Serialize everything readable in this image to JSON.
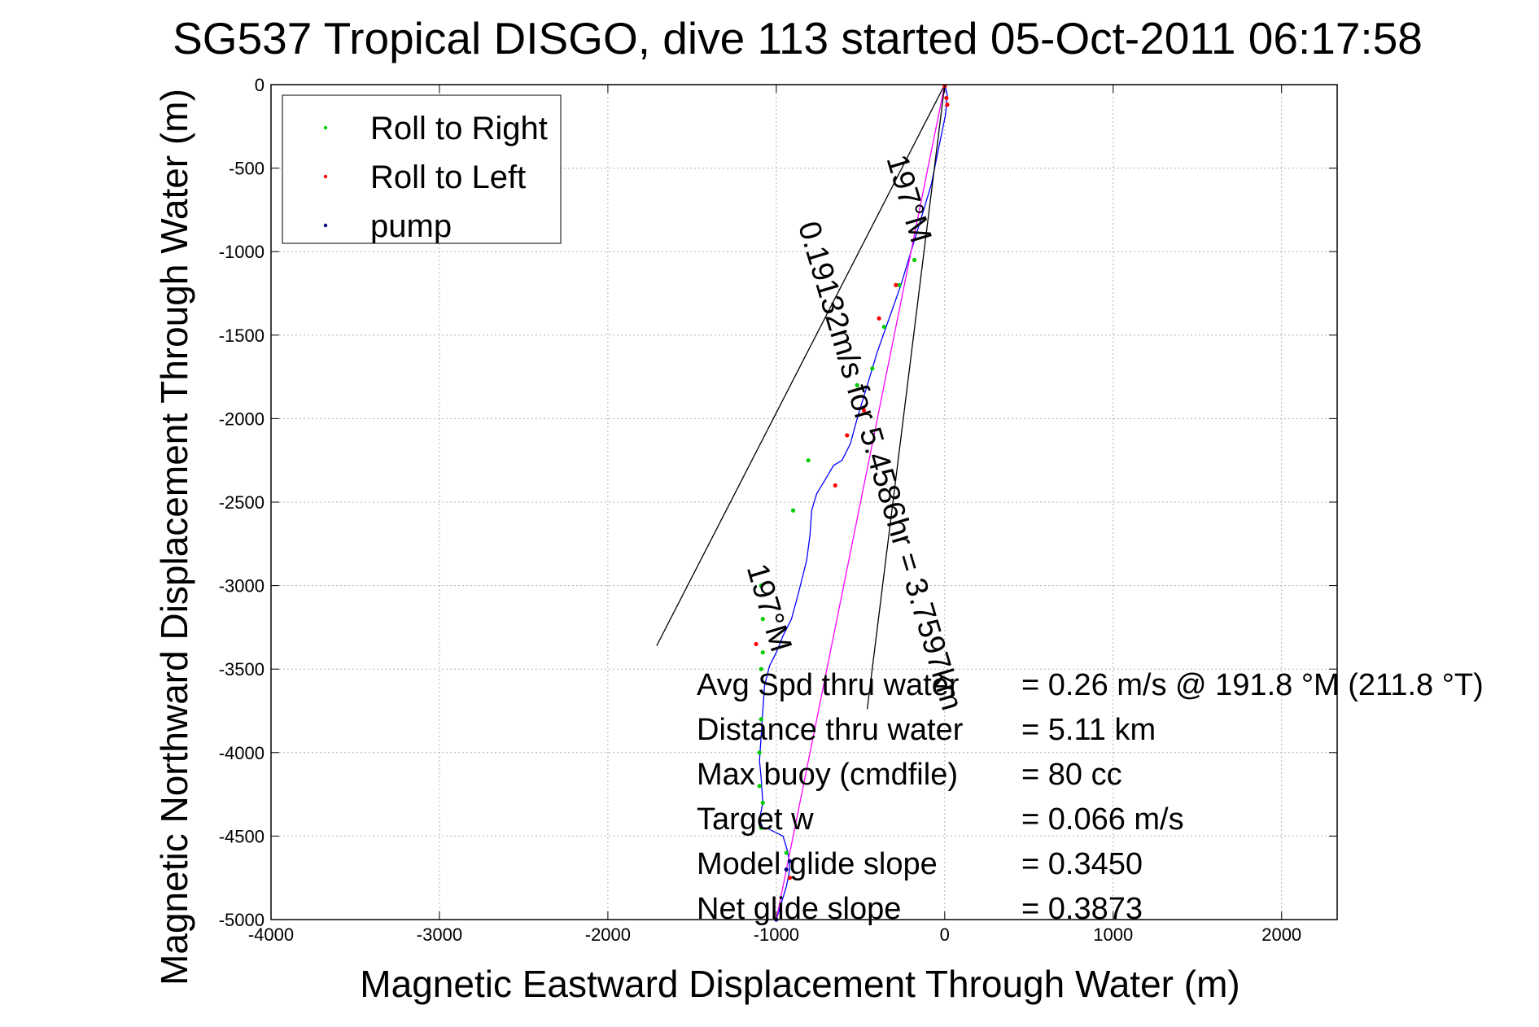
{
  "chart_data": {
    "type": "line",
    "title": "SG537 Tropical DISGO, dive 113 started 05-Oct-2011 06:17:58",
    "xlabel": "Magnetic Eastward Displacement Through Water (m)",
    "ylabel": "Magnetic Northward Displacement Through Water (m)",
    "xlim": [
      -4000,
      2330
    ],
    "ylim": [
      -5000,
      0
    ],
    "xticks": [
      -4000,
      -3000,
      -2000,
      -1000,
      0,
      1000,
      2000
    ],
    "yticks": [
      0,
      -500,
      -1000,
      -1500,
      -2000,
      -2500,
      -3000,
      -3500,
      -4000,
      -4500,
      -5000
    ],
    "grid": true,
    "legend_position": "top-left",
    "legend": [
      {
        "label": "Roll to Right",
        "color": "#00cc00"
      },
      {
        "label": "Roll to Left",
        "color": "#ff0000"
      },
      {
        "label": "pump",
        "color": "#000080"
      }
    ],
    "series": [
      {
        "color": "#0000ff",
        "x": [
          0,
          15,
          10,
          5,
          -40,
          -80,
          -140,
          -200,
          -260,
          -330,
          -400,
          -460,
          -520,
          -560,
          -610,
          -660,
          -700,
          -760,
          -790,
          -800,
          -820,
          -870,
          -910,
          -960,
          -1000,
          -1040,
          -1070,
          -1080,
          -1090,
          -1100,
          -1090,
          -1080,
          -1100,
          -1080,
          -1070,
          -1060,
          -960,
          -930,
          -920,
          -940,
          -970,
          -1000
        ],
        "y": [
          0,
          -60,
          -120,
          -180,
          -400,
          -600,
          -800,
          -1000,
          -1200,
          -1400,
          -1600,
          -1800,
          -2000,
          -2150,
          -2250,
          -2280,
          -2350,
          -2450,
          -2550,
          -2700,
          -2850,
          -3050,
          -3200,
          -3300,
          -3400,
          -3480,
          -3600,
          -3750,
          -3900,
          -4050,
          -4150,
          -4300,
          -4400,
          -4450,
          -4450,
          -4450,
          -4500,
          -4600,
          -4700,
          -4800,
          -4900,
          -5000
        ]
      },
      {
        "color": "#ff00ff",
        "x": [
          0,
          -1000
        ],
        "y": [
          0,
          -5000
        ]
      },
      {
        "color": "#000000",
        "x": [
          0,
          -1710
        ],
        "y": [
          0,
          -3360
        ]
      },
      {
        "color": "#000000",
        "x": [
          0,
          -460
        ],
        "y": [
          0,
          -3740
        ]
      }
    ],
    "markers": {
      "roll_right": {
        "color": "#00cc00",
        "points": [
          [
            -180,
            -1050
          ],
          [
            -270,
            -1200
          ],
          [
            -360,
            -1450
          ],
          [
            -430,
            -1700
          ],
          [
            -520,
            -1800
          ],
          [
            -810,
            -2250
          ],
          [
            -900,
            -2550
          ],
          [
            -1090,
            -3000
          ],
          [
            -1080,
            -3200
          ],
          [
            -1080,
            -3400
          ],
          [
            -1090,
            -3500
          ],
          [
            -1090,
            -3800
          ],
          [
            -1100,
            -4000
          ],
          [
            -1100,
            -4200
          ],
          [
            -1080,
            -4300
          ],
          [
            -1090,
            -4450
          ],
          [
            -940,
            -4600
          ]
        ]
      },
      "roll_left": {
        "color": "#ff0000",
        "points": [
          [
            0,
            -10
          ],
          [
            10,
            -80
          ],
          [
            15,
            -120
          ],
          [
            -290,
            -1200
          ],
          [
            -390,
            -1400
          ],
          [
            -480,
            -1950
          ],
          [
            -580,
            -2100
          ],
          [
            -650,
            -2400
          ],
          [
            -1120,
            -3350
          ],
          [
            -920,
            -4750
          ]
        ]
      },
      "pump": {
        "color": "#000080",
        "points": [
          [
            -920,
            -4650
          ],
          [
            -940,
            -4700
          ],
          [
            -1000,
            -5000
          ]
        ]
      }
    },
    "annotations": [
      {
        "text": "0.19132m/s for 5.4586hr = 3.7597km",
        "x": -440,
        "y": -2300
      },
      {
        "text": "197°M",
        "x": -270,
        "y": -700
      },
      {
        "text": "197°M",
        "x": -1100,
        "y": -3150
      }
    ],
    "stats": [
      {
        "label": "Avg Spd thru water",
        "value": "=  0.26 m/s @ 191.8 °M (211.8 °T)"
      },
      {
        "label": "Distance thru water",
        "value": "=  5.11 km"
      },
      {
        "label": "Max buoy (cmdfile)",
        "value": "= 80 cc"
      },
      {
        "label": "Target w",
        "value": "= 0.066 m/s"
      },
      {
        "label": "Model glide slope",
        "value": "= 0.3450"
      },
      {
        "label": "Net glide slope",
        "value": "= 0.3873"
      }
    ]
  }
}
